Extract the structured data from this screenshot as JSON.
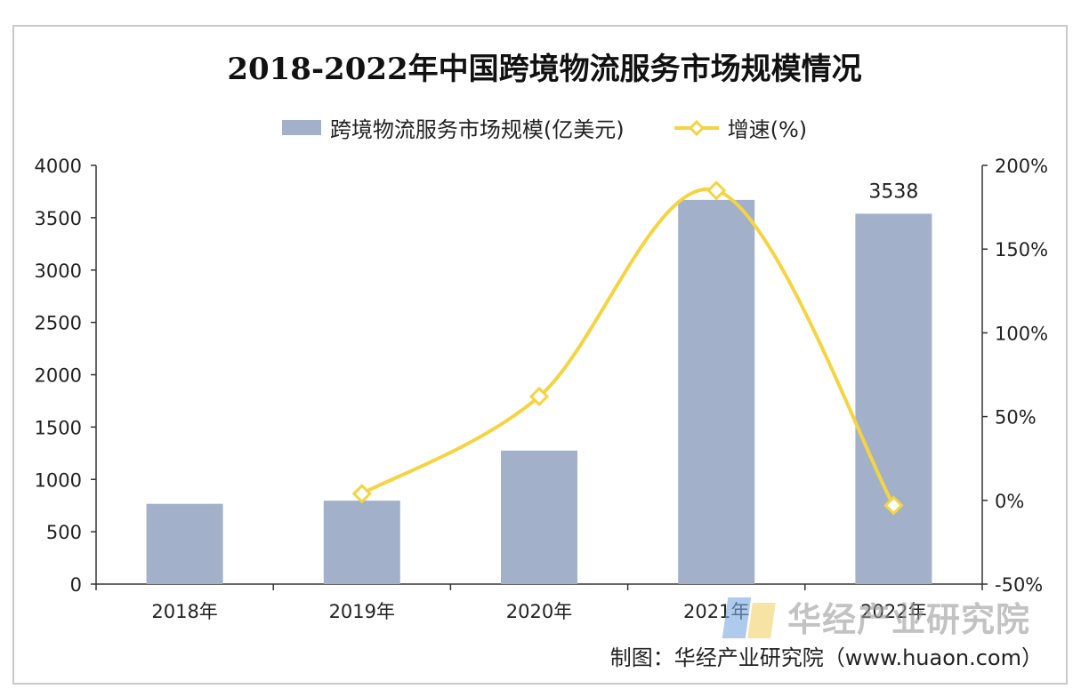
{
  "chart_data": {
    "type": "bar",
    "title": "2018-2022年中国跨境物流服务市场规模情况",
    "categories": [
      "2018年",
      "2019年",
      "2020年",
      "2021年",
      "2022年"
    ],
    "series": [
      {
        "name": "跨境物流服务市场规模(亿美元)",
        "type": "bar",
        "axis": "left",
        "color": "#a2b1c9",
        "values": [
          767,
          797,
          1275,
          3670,
          3538
        ],
        "data_labels": [
          "",
          "",
          "",
          "",
          "3538"
        ]
      },
      {
        "name": "增速(%)",
        "type": "line",
        "axis": "right",
        "color": "#f5d442",
        "marker": "diamond",
        "values": [
          null,
          4,
          62,
          185,
          -3
        ]
      }
    ],
    "left_axis": {
      "min": 0,
      "max": 4000,
      "ticks": [
        "0",
        "500",
        "1000",
        "1500",
        "2000",
        "2500",
        "3000",
        "3500",
        "4000"
      ]
    },
    "right_axis": {
      "min": -50,
      "max": 200,
      "ticks": [
        "-50%",
        "0%",
        "50%",
        "100%",
        "150%",
        "200%"
      ]
    },
    "legend_position": "top",
    "grid": false
  },
  "watermark": "华经产业研究院",
  "source": "制图：华经产业研究院（www.huaon.com）"
}
